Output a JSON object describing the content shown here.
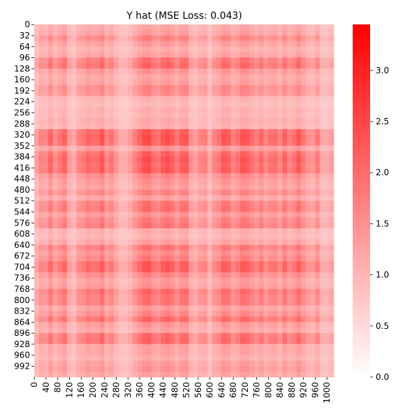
{
  "chart_data": {
    "type": "heatmap",
    "title": "Y hat (MSE Loss: 0.043)",
    "xlabel": "",
    "ylabel": "",
    "x_tick_labels": [
      "0",
      "40",
      "80",
      "120",
      "160",
      "200",
      "240",
      "280",
      "320",
      "360",
      "400",
      "440",
      "480",
      "520",
      "560",
      "600",
      "640",
      "680",
      "720",
      "760",
      "800",
      "840",
      "880",
      "920",
      "960",
      "1000"
    ],
    "y_tick_labels": [
      "0",
      "32",
      "64",
      "96",
      "128",
      "160",
      "192",
      "224",
      "256",
      "288",
      "320",
      "352",
      "384",
      "416",
      "448",
      "480",
      "512",
      "544",
      "576",
      "608",
      "640",
      "672",
      "704",
      "736",
      "768",
      "800",
      "832",
      "864",
      "896",
      "928",
      "960",
      "992"
    ],
    "matrix_shape": [
      1024,
      1024
    ],
    "colorscale": {
      "low": "#ffffff",
      "high": "#ff0000",
      "vmin": 0.0,
      "vmax": 3.45
    },
    "colorbar_ticks": [
      "0.0",
      "0.5",
      "1.0",
      "1.5",
      "2.0",
      "2.5",
      "3.0"
    ],
    "colorbar_values": [
      0.0,
      0.5,
      1.0,
      1.5,
      2.0,
      2.5,
      3.0
    ],
    "column_profile": [
      0.38,
      0.6,
      0.55,
      0.8,
      0.52,
      0.68,
      0.82,
      0.44,
      0.34,
      0.6,
      0.66,
      0.8,
      0.72,
      0.74,
      0.9,
      0.58,
      0.7,
      0.48,
      0.32,
      0.3,
      0.42,
      0.62,
      0.78,
      0.94,
      0.98,
      0.78,
      0.7,
      0.88,
      0.96,
      0.84,
      0.66,
      0.86,
      0.9,
      0.5,
      0.4,
      0.58,
      0.62,
      0.34,
      0.6,
      0.68,
      0.9,
      0.84,
      0.6,
      0.72,
      0.92,
      0.88,
      0.74,
      0.62,
      0.78,
      0.58,
      0.7,
      0.74,
      0.56,
      0.82,
      0.6,
      0.7,
      0.9,
      0.66,
      0.5,
      0.46,
      0.66,
      0.34,
      0.32,
      0.42
    ],
    "row_profile": [
      0.36,
      0.42,
      0.62,
      0.44,
      0.32,
      0.4,
      0.74,
      0.82,
      0.5,
      0.38,
      0.42,
      0.6,
      0.56,
      0.28,
      0.22,
      0.3,
      0.28,
      0.34,
      0.3,
      0.9,
      0.96,
      0.92,
      0.5,
      0.84,
      0.94,
      0.88,
      0.92,
      0.6,
      0.5,
      0.44,
      0.62,
      0.4,
      0.72,
      0.76,
      0.5,
      0.66,
      0.72,
      0.32,
      0.28,
      0.4,
      0.72,
      0.56,
      0.66,
      0.9,
      0.88,
      0.6,
      0.44,
      0.5,
      0.8,
      0.72,
      0.72,
      0.44,
      0.58,
      0.8,
      0.48,
      0.4,
      0.78,
      0.82,
      0.4,
      0.4,
      0.32,
      0.44,
      0.5,
      0.4
    ]
  }
}
